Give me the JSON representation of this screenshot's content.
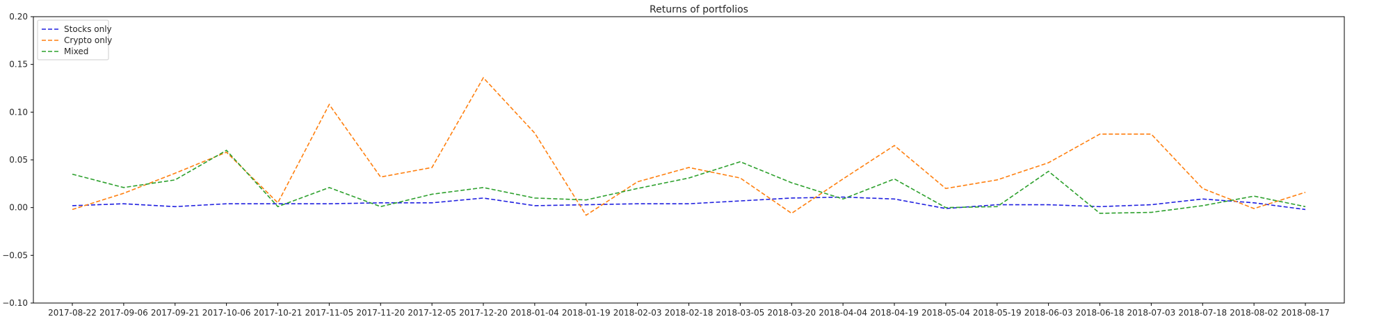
{
  "chart_data": {
    "type": "line",
    "title": "Returns of portfolios",
    "xlabel": "",
    "ylabel": "",
    "ylim": [
      -0.1,
      0.2
    ],
    "yticks": [
      "0.20",
      "0.15",
      "0.10",
      "0.05",
      "0.00",
      "−0.05",
      "−0.10"
    ],
    "ytick_values": [
      0.2,
      0.15,
      0.1,
      0.05,
      0.0,
      -0.05,
      -0.1
    ],
    "grid": false,
    "legend_placement": "top-left",
    "x": [
      "2017-08-22",
      "2017-09-06",
      "2017-09-21",
      "2017-10-06",
      "2017-10-21",
      "2017-11-05",
      "2017-11-20",
      "2017-12-05",
      "2017-12-20",
      "2018-01-04",
      "2018-01-19",
      "2018-02-03",
      "2018-02-18",
      "2018-03-05",
      "2018-03-20",
      "2018-04-04",
      "2018-04-19",
      "2018-05-04",
      "2018-05-19",
      "2018-06-03",
      "2018-06-18",
      "2018-07-03",
      "2018-07-18",
      "2018-08-02",
      "2018-08-17"
    ],
    "series": [
      {
        "name": "Stocks only",
        "color": "#1f1fdf",
        "dash": "dashed",
        "values": [
          0.002,
          0.004,
          0.001,
          0.004,
          0.004,
          0.004,
          0.005,
          0.005,
          0.01,
          0.002,
          0.003,
          0.004,
          0.004,
          0.007,
          0.01,
          0.011,
          0.009,
          -0.001,
          0.003,
          0.003,
          0.001,
          0.003,
          0.009,
          0.005,
          -0.002
        ]
      },
      {
        "name": "Crypto only",
        "color": "#ff7f0e",
        "dash": "dashed",
        "values": [
          -0.002,
          0.015,
          0.036,
          0.058,
          0.005,
          0.108,
          0.032,
          0.042,
          0.136,
          0.078,
          -0.008,
          0.027,
          0.042,
          0.031,
          -0.006,
          0.03,
          0.065,
          0.02,
          0.029,
          0.047,
          0.077,
          0.077,
          0.02,
          -0.001,
          0.016
        ]
      },
      {
        "name": "Mixed",
        "color": "#2ca02c",
        "dash": "dashed",
        "values": [
          0.035,
          0.021,
          0.029,
          0.06,
          0.001,
          0.021,
          0.001,
          0.014,
          0.021,
          0.01,
          0.008,
          0.02,
          0.031,
          0.048,
          0.026,
          0.009,
          0.03,
          0.0,
          0.001,
          0.038,
          -0.006,
          -0.005,
          0.002,
          0.012,
          0.001
        ]
      }
    ]
  }
}
